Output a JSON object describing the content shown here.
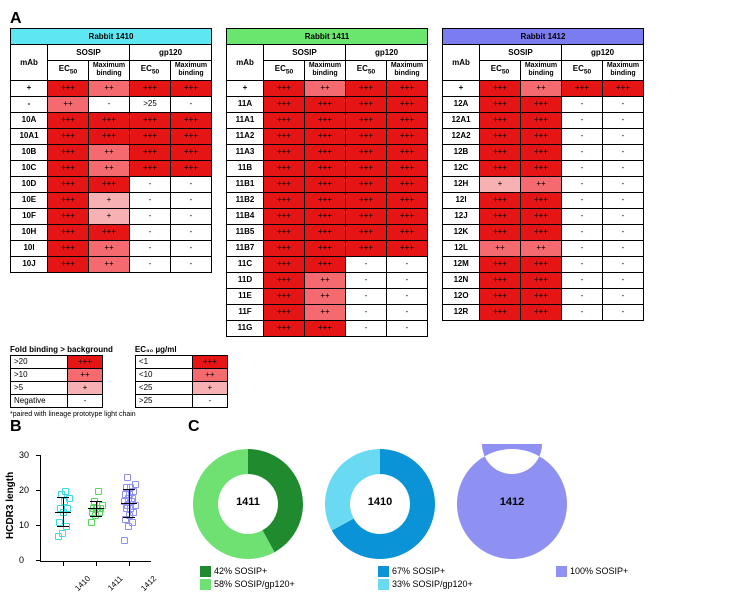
{
  "panelA_label": "A",
  "panelB_label": "B",
  "panelC_label": "C",
  "header_colors": {
    "r1410": "#5ee7f2",
    "r1411": "#6ae56e",
    "r1412": "#7b7cf0"
  },
  "cell_colors": {
    "+++": "#e51515",
    "++": "#f46a6f",
    "+": "#f7b1b3",
    "-": "#ffffff"
  },
  "footnote": "*paired with lineage prototype light chain",
  "col_headers": {
    "mab": "mAb",
    "sosip": "SOSIP",
    "gp120": "gp120",
    "ec50": "EC",
    "ec50_sub": "50",
    "maxb": "Maximum binding"
  },
  "tables": [
    {
      "title": "Rabbit 1410",
      "header_key": "r1410",
      "rows": [
        [
          "+",
          "+++",
          "++",
          "+++",
          "+++"
        ],
        [
          "-",
          "++",
          "-",
          ">25",
          "-"
        ],
        [
          "10A",
          "+++",
          "+++",
          "+++",
          "+++"
        ],
        [
          "10A1",
          "+++",
          "+++",
          "+++",
          "+++"
        ],
        [
          "10B",
          "+++",
          "++",
          "+++",
          "+++"
        ],
        [
          "10C",
          "+++",
          "++",
          "+++",
          "+++"
        ],
        [
          "10D",
          "+++",
          "+++",
          "-",
          "-"
        ],
        [
          "10E",
          "+++",
          "+",
          "-",
          "-"
        ],
        [
          "10F",
          "+++",
          "+",
          "-",
          "-"
        ],
        [
          "10H",
          "+++",
          "+++",
          "-",
          "-"
        ],
        [
          "10I",
          "+++",
          "++",
          "-",
          "-"
        ],
        [
          "10J",
          "+++",
          "++",
          "-",
          "-"
        ]
      ]
    },
    {
      "title": "Rabbit 1411",
      "header_key": "r1411",
      "rows": [
        [
          "+",
          "+++",
          "++",
          "+++",
          "+++"
        ],
        [
          "11A",
          "+++",
          "+++",
          "+++",
          "+++"
        ],
        [
          "11A1",
          "+++",
          "+++",
          "+++",
          "+++"
        ],
        [
          "11A2",
          "+++",
          "+++",
          "+++",
          "+++"
        ],
        [
          "11A3",
          "+++",
          "+++",
          "+++",
          "+++"
        ],
        [
          "11B",
          "+++",
          "+++",
          "+++",
          "+++"
        ],
        [
          "11B1",
          "+++",
          "+++",
          "+++",
          "+++"
        ],
        [
          "11B2",
          "+++",
          "+++",
          "+++",
          "+++"
        ],
        [
          "11B4",
          "+++",
          "+++",
          "+++",
          "+++"
        ],
        [
          "11B5",
          "+++",
          "+++",
          "+++",
          "+++"
        ],
        [
          "11B7",
          "+++",
          "+++",
          "+++",
          "+++"
        ],
        [
          "11C",
          "+++",
          "+++",
          "-",
          "-"
        ],
        [
          "11D",
          "+++",
          "++",
          "-",
          "-"
        ],
        [
          "11E",
          "+++",
          "++",
          "-",
          "-"
        ],
        [
          "11F",
          "+++",
          "++",
          "-",
          "-"
        ],
        [
          "11G",
          "+++",
          "+++",
          "-",
          "-"
        ]
      ]
    },
    {
      "title": "Rabbit 1412",
      "header_key": "r1412",
      "rows": [
        [
          "+",
          "+++",
          "++",
          "+++",
          "+++"
        ],
        [
          "12A",
          "+++",
          "+++",
          "-",
          "-"
        ],
        [
          "12A1",
          "+++",
          "+++",
          "-",
          "-"
        ],
        [
          "12A2",
          "+++",
          "+++",
          "-",
          "-"
        ],
        [
          "12B",
          "+++",
          "+++",
          "-",
          "-"
        ],
        [
          "12C",
          "+++",
          "+++",
          "-",
          "-"
        ],
        [
          "12H",
          "+",
          "++",
          "-",
          "-"
        ],
        [
          "12I",
          "+++",
          "+++",
          "-",
          "-"
        ],
        [
          "12J",
          "+++",
          "+++",
          "-",
          "-"
        ],
        [
          "12K",
          "+++",
          "+++",
          "-",
          "-"
        ],
        [
          "12L",
          "++",
          "++",
          "-",
          "-"
        ],
        [
          "12M",
          "+++",
          "+++",
          "-",
          "-"
        ],
        [
          "12N",
          "+++",
          "+++",
          "-",
          "-"
        ],
        [
          "12O",
          "+++",
          "+++",
          "-",
          "-"
        ],
        [
          "12R",
          "+++",
          "+++",
          "-",
          "-"
        ]
      ]
    }
  ],
  "legend_fold": {
    "title": "Fold binding > background",
    "rows": [
      [
        ">20",
        "+++"
      ],
      [
        ">10",
        "++"
      ],
      [
        ">5",
        "+"
      ],
      [
        "Negative",
        "-"
      ]
    ]
  },
  "legend_ec50": {
    "title": "EC₅₀ µg/ml",
    "rows": [
      [
        "<1",
        "+++"
      ],
      [
        "<10",
        "++"
      ],
      [
        "<25",
        "+"
      ],
      [
        ">25",
        "-"
      ]
    ]
  },
  "panelB": {
    "ylabel": "HCDR3 length",
    "ymin": 0,
    "ymax": 30,
    "yticks": [
      0,
      10,
      20,
      30
    ],
    "groups": [
      {
        "label": "1410",
        "x": 22,
        "color": "#3fd9e8",
        "points": [
          7,
          8,
          10,
          11,
          14,
          15,
          15,
          17,
          18,
          19,
          20
        ],
        "mean": 14,
        "sd": 4.2
      },
      {
        "label": "1411",
        "x": 55,
        "color": "#55d85c",
        "points": [
          11,
          13,
          14,
          14,
          15,
          15,
          15,
          15,
          16,
          17,
          20
        ],
        "mean": 15,
        "sd": 2.1
      },
      {
        "label": "1412",
        "x": 88,
        "color": "#8e90f2",
        "points": [
          6,
          10,
          11,
          12,
          13,
          14,
          15,
          15,
          16,
          16,
          17,
          17,
          18,
          18,
          19,
          19,
          20,
          21,
          21,
          22,
          24
        ],
        "mean": 16.5,
        "sd": 4.1
      }
    ]
  },
  "panelC": {
    "donuts": [
      {
        "label": "1411",
        "colors": [
          "#1f8a2e",
          "#6fe072"
        ],
        "fracs": [
          0.42,
          0.58
        ]
      },
      {
        "label": "1410",
        "colors": [
          "#0a93d6",
          "#6ad9f2"
        ],
        "fracs": [
          0.67,
          0.33
        ]
      },
      {
        "label": "1412",
        "colors": [
          "#8e90f2"
        ],
        "fracs": [
          1.0
        ]
      }
    ],
    "legend": [
      [
        {
          "c": "#1f8a2e",
          "t": "42%  SOSIP+"
        },
        {
          "c": "#0a93d6",
          "t": "67%  SOSIP+"
        },
        {
          "c": "#8e90f2",
          "t": "100%  SOSIP+"
        }
      ],
      [
        {
          "c": "#6fe072",
          "t": "58%  SOSIP/gp120+"
        },
        {
          "c": "#6ad9f2",
          "t": "33%  SOSIP/gp120+"
        }
      ]
    ]
  }
}
